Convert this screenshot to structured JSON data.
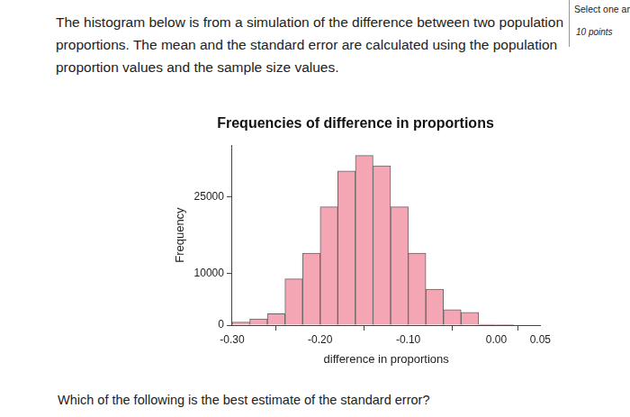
{
  "question": {
    "text": "The histogram below is from a simulation of the difference between two population proportions. The mean and the standard error are calculated using the population proportion values and the sample size values.",
    "prompt": "Which of the following is the best estimate of the standard error?"
  },
  "sidebar": {
    "instruction": "Select one an",
    "points": "10 points"
  },
  "chart_data": {
    "type": "histogram",
    "title": "Frequencies of difference in proportions",
    "x_label": "difference in proportions",
    "y_label": "Frequency",
    "bins": [
      -0.3,
      -0.28,
      -0.26,
      -0.24,
      -0.22,
      -0.2,
      -0.18,
      -0.16,
      -0.14,
      -0.12,
      -0.1,
      -0.08,
      -0.06,
      -0.04,
      -0.02,
      0.0,
      0.02,
      0.04
    ],
    "values": [
      600,
      1200,
      2200,
      9000,
      14000,
      23000,
      30000,
      33000,
      31000,
      23000,
      14000,
      7000,
      3000,
      2500,
      150,
      50,
      0
    ],
    "color": "#f4a6b4",
    "xlim": [
      -0.3,
      0.05
    ],
    "xticks": [
      {
        "value": -0.3,
        "label": "-0.30"
      },
      {
        "value": -0.2,
        "label": "-0.20"
      },
      {
        "value": -0.1,
        "label": "-0.10"
      },
      {
        "value": 0.0,
        "label": "0.00"
      },
      {
        "value": 0.05,
        "label": "0.05"
      }
    ],
    "ylim": [
      0,
      35000
    ],
    "yticks": [
      0,
      10000,
      25000
    ],
    "grid": false
  }
}
